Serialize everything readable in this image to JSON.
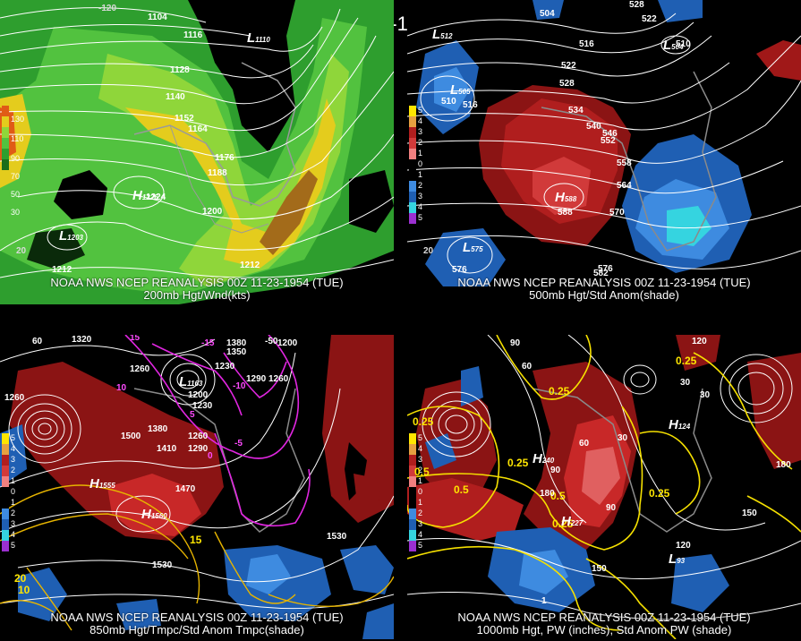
{
  "title": "00Z 11-23-1954 (TUE)",
  "panels": {
    "p200": {
      "caption1": "NOAA NWS NCEP REANALYSIS 00Z 11-23-1954 (TUE)",
      "caption2": "200mb Hgt/Wnd(kts)",
      "legend": [
        "130",
        "110",
        "90",
        "70",
        "50",
        "30"
      ],
      "contour_labels": [
        "1104",
        "1116",
        "1128",
        "1140",
        "1152",
        "1164",
        "1176",
        "1188",
        "1200",
        "1212",
        "1212",
        "1224",
        "20",
        "-120"
      ],
      "centers": [
        {
          "type": "L",
          "value": "1203"
        },
        {
          "type": "H",
          "value": "1226"
        },
        {
          "type": "L",
          "value": "1110"
        }
      ]
    },
    "p500": {
      "caption1": "NOAA NWS NCEP REANALYSIS 00Z 11-23-1954 (TUE)",
      "caption2": "500mb Hgt/Std Anom(shade)",
      "legend": [
        "5",
        "4",
        "3",
        "2",
        "1",
        "0",
        "1",
        "2",
        "3",
        "4",
        "5"
      ],
      "contour_labels": [
        "504",
        "510",
        "516",
        "522",
        "528",
        "534",
        "540",
        "546",
        "552",
        "558",
        "564",
        "570",
        "576",
        "582",
        "588",
        "510",
        "516",
        "528",
        "522",
        "576",
        "20"
      ],
      "centers": [
        {
          "type": "L",
          "value": "505"
        },
        {
          "type": "L",
          "value": "512"
        },
        {
          "type": "L",
          "value": "504"
        },
        {
          "type": "H",
          "value": "588"
        },
        {
          "type": "L",
          "value": "575"
        }
      ]
    },
    "p850": {
      "caption1": "NOAA NWS NCEP REANALYSIS 00Z 11-23-1954 (TUE)",
      "caption2": "850mb Hgt/Tmpc/Std Anom Tmpc(shade)",
      "legend": [
        "5",
        "4",
        "3",
        "2",
        "1",
        "0",
        "1",
        "2",
        "3",
        "4",
        "5"
      ],
      "contour_labels": [
        "1320",
        "1260",
        "1260",
        "1380",
        "1350",
        "1290",
        "1230",
        "1200",
        "1260",
        "1200",
        "1230",
        "1380",
        "1500",
        "1260",
        "1290",
        "1410",
        "1470",
        "1530",
        "1530",
        "15",
        "-15",
        "10",
        "5",
        "0",
        "-10",
        "-5",
        "15",
        "20",
        "10",
        "60",
        "-50"
      ],
      "centers": [
        {
          "type": "H",
          "value": "1555"
        },
        {
          "type": "H",
          "value": "1560"
        },
        {
          "type": "L",
          "value": "1163"
        }
      ]
    },
    "p1000": {
      "caption1": "NOAA NWS NCEP REANALYSIS 00Z 11-23-1954 (TUE)",
      "caption2": "1000mb Hgt, PW (inches), Std Anom PW (shade)",
      "legend": [
        "5",
        "4",
        "3",
        "2",
        "1",
        "0",
        "1",
        "2",
        "3",
        "4",
        "5"
      ],
      "contour_labels": [
        "90",
        "60",
        "120",
        "0.25",
        "0.25",
        "0.25",
        "0.5",
        "0.5",
        "0.25",
        "0.5",
        "0.25",
        "0.25",
        "30",
        "30",
        "30",
        "60",
        "90",
        "180",
        "180",
        "150",
        "120",
        "150",
        "90",
        "1"
      ],
      "centers": [
        {
          "type": "H",
          "value": "240"
        },
        {
          "type": "H",
          "value": "227"
        },
        {
          "type": "H",
          "value": "124"
        },
        {
          "type": "L",
          "value": "93"
        }
      ]
    }
  }
}
